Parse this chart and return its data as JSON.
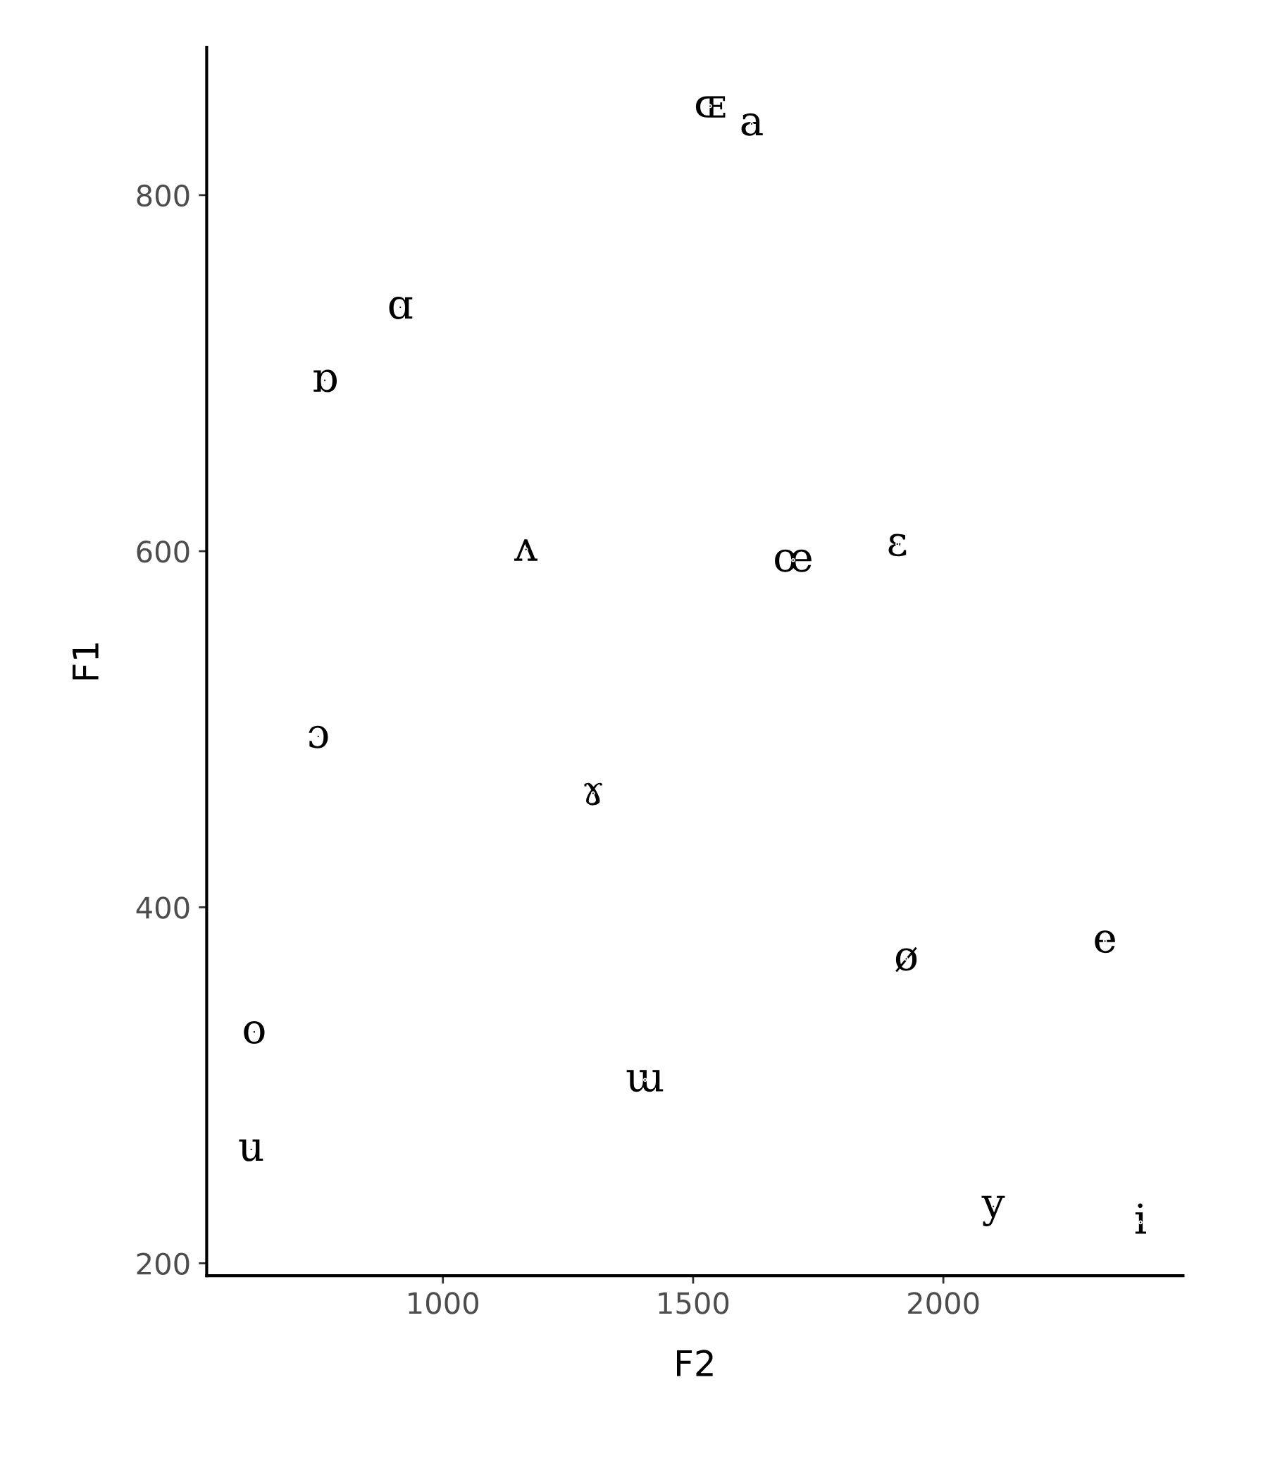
{
  "chart_data": {
    "type": "scatter",
    "xlabel": "F2",
    "ylabel": "F1",
    "marker": "none",
    "grid": false,
    "legend": false,
    "xlim": [
      528,
      2479
    ],
    "ylim": [
      193,
      883
    ],
    "xticks": [
      1000,
      1500,
      2000
    ],
    "yticks": [
      200,
      400,
      600,
      800
    ],
    "series": [
      {
        "color": "#000000",
        "x": [
          1534,
          1617,
          915,
          764,
          1166,
          1700,
          1908,
          751,
          1300,
          2323,
          1926,
          623,
          1404,
          617,
          2100,
          2394
        ],
        "values": [
          850,
          840,
          737,
          696,
          601,
          595,
          604,
          496,
          464,
          381,
          371,
          330,
          303,
          264,
          232,
          223
        ],
        "value_labels": [
          "ɶ",
          "a",
          "ɑ",
          "ɒ",
          "ʌ",
          "œ",
          "ɛ",
          "ɔ",
          "ɤ",
          "e",
          "ø",
          "o",
          "ɯ",
          "u",
          "y",
          "i"
        ]
      }
    ]
  }
}
